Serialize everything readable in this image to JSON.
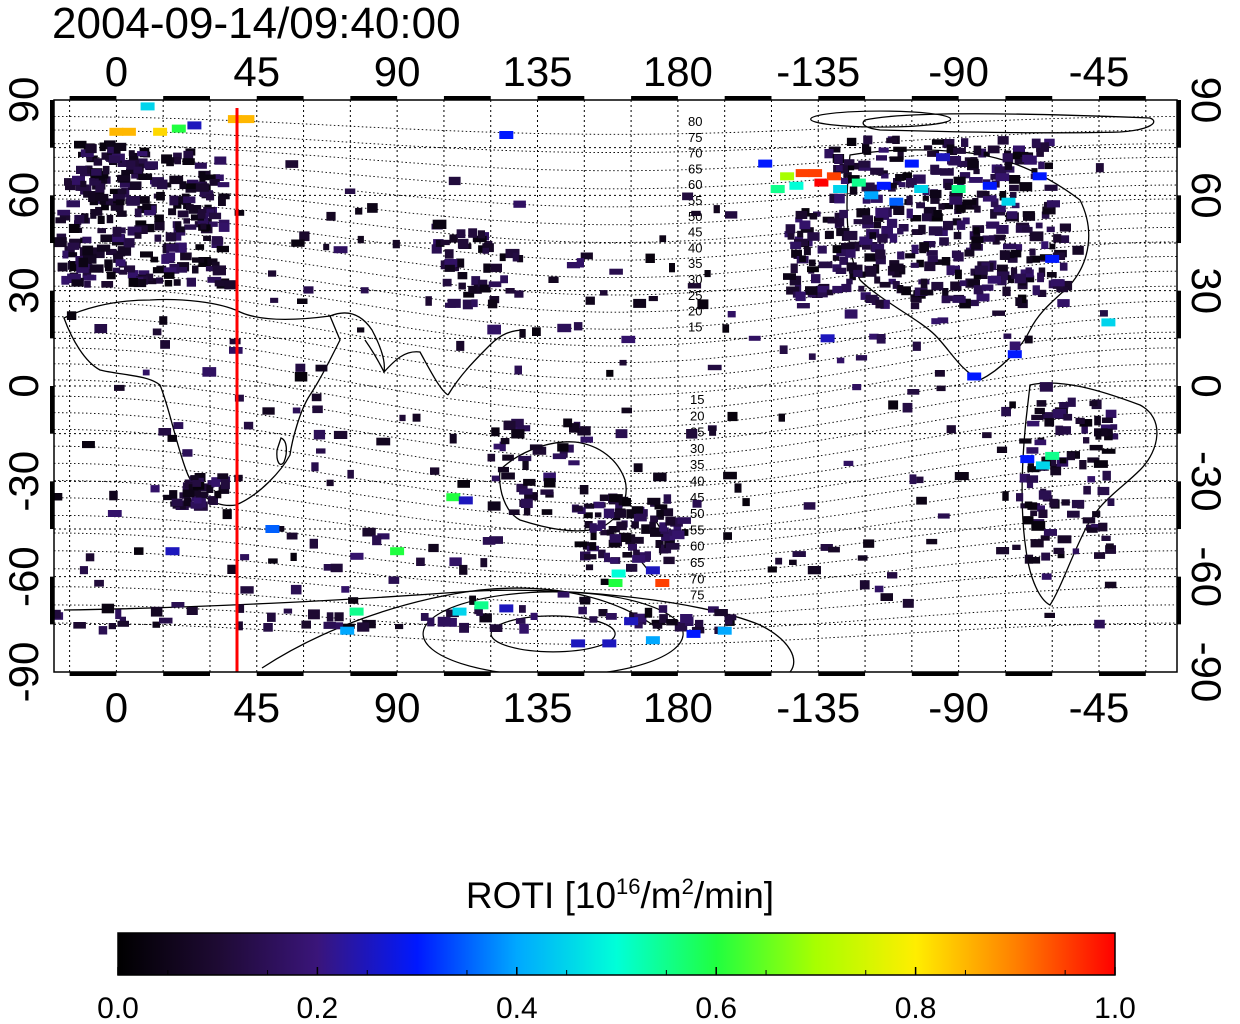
{
  "timestamp": "2004-09-14/09:40:00",
  "colorbar": {
    "title_prefix": "ROTI  [10",
    "title_sup1": "16",
    "title_mid": "/m",
    "title_sup2": "2",
    "title_suffix": "/min]",
    "ticks": [
      "0.0",
      "0.2",
      "0.4",
      "0.6",
      "0.8",
      "1.0"
    ],
    "colors": [
      "#000000",
      "#2a0f4a",
      "#3a1a8a",
      "#0022ff",
      "#00b0ff",
      "#00ffe0",
      "#30ff30",
      "#c8ff00",
      "#ffe000",
      "#ff8000",
      "#ff0000"
    ]
  },
  "chart_data": {
    "type": "heatmap",
    "title": "2004-09-14/09:40:00",
    "colorbar_label": "ROTI  [10^16/m^2/min]",
    "value_range": [
      0.0,
      1.0
    ],
    "x_ticks_top": [
      "0",
      "45",
      "90",
      "135",
      "180",
      "-135",
      "-90",
      "-45"
    ],
    "x_ticks_bottom": [
      "0",
      "45",
      "90",
      "135",
      "180",
      "-135",
      "-90",
      "-45"
    ],
    "y_ticks_left": [
      "90",
      "60",
      "30",
      "0",
      "-30",
      "-60",
      "-90"
    ],
    "y_ticks_right": [
      "90",
      "60",
      "30",
      "0",
      "-30",
      "-60",
      "-90"
    ],
    "xlim": [
      -20,
      340
    ],
    "ylim": [
      -90,
      90
    ],
    "terminator_longitude": 35,
    "magnetic_latitude_labels_north": [
      "80",
      "75",
      "70",
      "65",
      "60",
      "55",
      "50",
      "45",
      "40",
      "35",
      "30",
      "25",
      "20",
      "15"
    ],
    "magnetic_latitude_labels_south": [
      "15",
      "20",
      "25",
      "30",
      "35",
      "40",
      "45",
      "50",
      "55",
      "60",
      "65",
      "70",
      "75"
    ],
    "cells": [
      {
        "lon": 0,
        "lat": 80,
        "v": 0.85
      },
      {
        "lon": 4,
        "lat": 80,
        "v": 0.85
      },
      {
        "lon": 10,
        "lat": 88,
        "v": 0.45
      },
      {
        "lon": 14,
        "lat": 80,
        "v": 0.82
      },
      {
        "lon": 20,
        "lat": 81,
        "v": 0.6
      },
      {
        "lon": 25,
        "lat": 82,
        "v": 0.25
      },
      {
        "lon": 38,
        "lat": 84,
        "v": 0.85
      },
      {
        "lon": 42,
        "lat": 84,
        "v": 0.85
      },
      {
        "lon": 125,
        "lat": 79,
        "v": 0.3
      },
      {
        "lon": 215,
        "lat": 66,
        "v": 0.7
      },
      {
        "lon": 220,
        "lat": 67,
        "v": 0.95
      },
      {
        "lon": 224,
        "lat": 67,
        "v": 0.95
      },
      {
        "lon": 226,
        "lat": 64,
        "v": 1.0
      },
      {
        "lon": 230,
        "lat": 66,
        "v": 0.95
      },
      {
        "lon": 212,
        "lat": 62,
        "v": 0.55
      },
      {
        "lon": 218,
        "lat": 63,
        "v": 0.5
      },
      {
        "lon": 232,
        "lat": 62,
        "v": 0.45
      },
      {
        "lon": 238,
        "lat": 64,
        "v": 0.55
      },
      {
        "lon": 242,
        "lat": 60,
        "v": 0.4
      },
      {
        "lon": 246,
        "lat": 63,
        "v": 0.3
      },
      {
        "lon": 208,
        "lat": 70,
        "v": 0.3
      },
      {
        "lon": 250,
        "lat": 58,
        "v": 0.35
      },
      {
        "lon": 258,
        "lat": 62,
        "v": 0.45
      },
      {
        "lon": 270,
        "lat": 62,
        "v": 0.55
      },
      {
        "lon": 280,
        "lat": 63,
        "v": 0.3
      },
      {
        "lon": 286,
        "lat": 58,
        "v": 0.45
      },
      {
        "lon": 296,
        "lat": 66,
        "v": 0.3
      },
      {
        "lon": 300,
        "lat": 40,
        "v": 0.3
      },
      {
        "lon": 318,
        "lat": 20,
        "v": 0.45
      },
      {
        "lon": 228,
        "lat": 15,
        "v": 0.25
      },
      {
        "lon": 275,
        "lat": 3,
        "v": 0.3
      },
      {
        "lon": 288,
        "lat": 10,
        "v": 0.3
      },
      {
        "lon": 300,
        "lat": -22,
        "v": 0.55
      },
      {
        "lon": 297,
        "lat": -25,
        "v": 0.45
      },
      {
        "lon": 292,
        "lat": -23,
        "v": 0.3
      },
      {
        "lon": 108,
        "lat": -35,
        "v": 0.6
      },
      {
        "lon": 112,
        "lat": -36,
        "v": 0.25
      },
      {
        "lon": 172,
        "lat": -58,
        "v": 0.25
      },
      {
        "lon": 175,
        "lat": -62,
        "v": 0.95
      },
      {
        "lon": 160,
        "lat": -62,
        "v": 0.6
      },
      {
        "lon": 161,
        "lat": -59,
        "v": 0.5
      },
      {
        "lon": 90,
        "lat": -52,
        "v": 0.6
      },
      {
        "lon": 50,
        "lat": -45,
        "v": 0.35
      },
      {
        "lon": 18,
        "lat": -52,
        "v": 0.25
      },
      {
        "lon": 77,
        "lat": -71,
        "v": 0.55
      },
      {
        "lon": 74,
        "lat": -77,
        "v": 0.4
      },
      {
        "lon": 110,
        "lat": -71,
        "v": 0.45
      },
      {
        "lon": 117,
        "lat": -69,
        "v": 0.55
      },
      {
        "lon": 125,
        "lat": -70,
        "v": 0.25
      },
      {
        "lon": 148,
        "lat": -81,
        "v": 0.25
      },
      {
        "lon": 158,
        "lat": -81,
        "v": 0.25
      },
      {
        "lon": 165,
        "lat": -74,
        "v": 0.25
      },
      {
        "lon": 172,
        "lat": -80,
        "v": 0.4
      },
      {
        "lon": 185,
        "lat": -78,
        "v": 0.3
      },
      {
        "lon": 195,
        "lat": -77,
        "v": 0.4
      },
      {
        "lon": 255,
        "lat": 70,
        "v": 0.3
      },
      {
        "lon": 265,
        "lat": 72,
        "v": 0.25
      }
    ]
  }
}
